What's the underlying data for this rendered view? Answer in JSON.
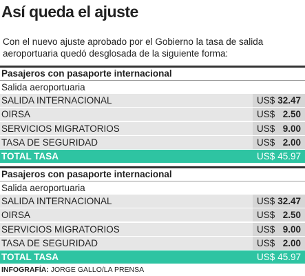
{
  "header": {
    "title": "Así queda el ajuste",
    "intro": "Con el nuevo ajuste aprobado por el Gobierno la tasa de salida aeroportuaria quedó desglosada de la siguiente forma:"
  },
  "sections": [
    {
      "heading": "Pasajeros con pasaporte internacional",
      "subheading": "Salida aeroportuaria",
      "rows": [
        [
          "SALIDA INTERNACIONAL",
          "US$",
          "32.47"
        ],
        [
          "OIRSA",
          "US$",
          "2.50"
        ],
        [
          "SERVICIOS MIGRATORIOS",
          "US$",
          "9.00"
        ],
        [
          "TASA DE SEGURIDAD",
          "US$",
          "2.00"
        ]
      ],
      "total": [
        "TOTAL TASA",
        "US$",
        "45.97"
      ]
    },
    {
      "heading": "Pasajeros con pasaporte internacional",
      "subheading": "Salida aeroportuaria",
      "rows": [
        [
          "SALIDA INTERNACIONAL",
          "US$",
          "32.47"
        ],
        [
          "OIRSA",
          "US$",
          "2.50"
        ],
        [
          "SERVICIOS MIGRATORIOS",
          "US$",
          "9.00"
        ],
        [
          "TASA DE SEGURIDAD",
          "US$",
          "2.00"
        ]
      ],
      "total": [
        "TOTAL TASA",
        "US$",
        "45.97"
      ]
    }
  ],
  "footer": {
    "label": "INFOGRAFÍA:",
    "credit": "JORGE GALLO/LA PRENSA"
  }
}
